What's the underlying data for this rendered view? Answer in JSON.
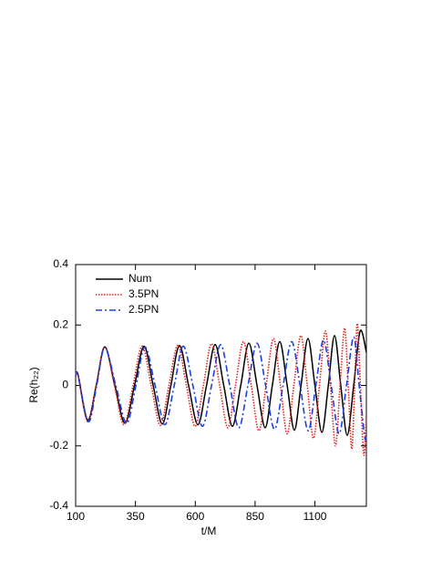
{
  "chart_data": {
    "type": "line",
    "xlabel": "t/M",
    "ylabel": "Re(h₂₂)",
    "xlim": [
      100,
      1315
    ],
    "ylim": [
      -0.4,
      0.4
    ],
    "xticks": [
      100,
      350,
      600,
      850,
      1100
    ],
    "yticks": [
      -0.4,
      -0.2,
      0,
      0.2,
      0.4
    ],
    "legend": "upper-left",
    "series": [
      {
        "name": "Num",
        "color": "#000000",
        "dash": "solid",
        "x": [
          100,
          110,
          150,
          186,
          222,
          264,
          306,
          346,
          386,
          424,
          462,
          498,
          534,
          572,
          611,
          647,
          683,
          719,
          755,
          790,
          824,
          858,
          892,
          922,
          953,
          984,
          1014,
          1042,
          1071,
          1100,
          1129,
          1156,
          1182,
          1208,
          1235,
          1262,
          1289,
          1315
        ],
        "values": [
          0.03,
          0.035,
          -0.115,
          0,
          0.128,
          0,
          -0.125,
          0,
          0.13,
          0,
          -0.128,
          0,
          0.132,
          0,
          -0.13,
          0,
          0.135,
          0,
          -0.135,
          0,
          0.14,
          0,
          -0.14,
          0,
          0.145,
          0,
          -0.148,
          0,
          0.155,
          0,
          -0.155,
          0,
          0.165,
          0,
          -0.165,
          0,
          0.18,
          0.11
        ]
      },
      {
        "name": "3.5PN",
        "color": "#e8201c",
        "dash": "dotted",
        "x": [
          100,
          110,
          150,
          186,
          222,
          262,
          302,
          340,
          378,
          416,
          454,
          490,
          527,
          563,
          599,
          634,
          668,
          702,
          736,
          768,
          801,
          834,
          866,
          896,
          927,
          956,
          984,
          1012,
          1041,
          1068,
          1094,
          1119,
          1144,
          1165,
          1186,
          1205,
          1224,
          1239,
          1254,
          1266,
          1277,
          1290,
          1304,
          1315
        ],
        "values": [
          0.03,
          0.035,
          -0.12,
          0,
          0.128,
          0,
          -0.13,
          0,
          0.13,
          0,
          -0.132,
          0,
          0.133,
          0,
          -0.135,
          0,
          0.138,
          0,
          -0.14,
          0,
          0.145,
          0,
          -0.15,
          0,
          0.155,
          0,
          -0.16,
          0,
          0.165,
          0,
          -0.175,
          0,
          0.18,
          0,
          -0.2,
          0,
          0.19,
          0,
          -0.21,
          0,
          0.205,
          0,
          -0.23,
          -0.1
        ]
      },
      {
        "name": "2.5PN",
        "color": "#1c3fe0",
        "dash": "dashdot",
        "x": [
          100,
          110,
          153,
          188,
          222,
          268,
          313,
          352,
          390,
          432,
          473,
          512,
          550,
          590,
          630,
          668,
          706,
          744,
          782,
          820,
          858,
          894,
          931,
          967,
          1003,
          1038,
          1072,
          1104,
          1136,
          1168,
          1201,
          1232,
          1262,
          1285,
          1308,
          1315
        ],
        "values": [
          0.03,
          0.035,
          -0.12,
          0,
          0.125,
          0,
          -0.125,
          0,
          0.127,
          0,
          -0.13,
          0,
          0.13,
          0,
          -0.135,
          0,
          0.135,
          0,
          -0.14,
          0,
          0.14,
          0,
          -0.145,
          0,
          0.145,
          0,
          -0.15,
          0,
          0.15,
          0,
          -0.16,
          0,
          0.16,
          0,
          -0.17,
          -0.16
        ]
      }
    ]
  }
}
